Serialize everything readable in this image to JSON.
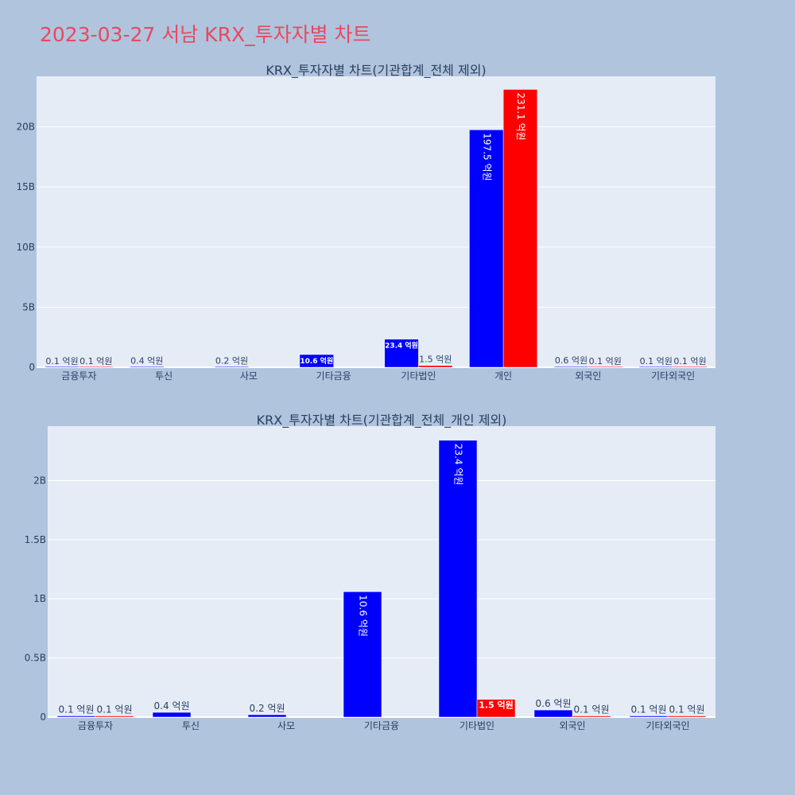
{
  "page": {
    "title": "2023-03-27 서남 KRX_투자자별 차트"
  },
  "colors": {
    "background": "#b0c4de",
    "plot_bg": "#e5ecf6",
    "grid": "#ffffff",
    "title": "#e8495d",
    "text": "#2a3f5f",
    "sell": "#0000ff",
    "buy": "#ff0000"
  },
  "chart_data": [
    {
      "type": "bar",
      "title": "KRX_투자자별 차트(기관합계_전체 제외)",
      "categories": [
        "금융투자",
        "투신",
        "사모",
        "기타금융",
        "기타법인",
        "개인",
        "외국인",
        "기타외국인"
      ],
      "series": [
        {
          "color": "#0000ff",
          "values": [
            10000000,
            40000000,
            20000000,
            1060000000,
            2340000000,
            19750000000,
            60000000,
            10000000
          ],
          "labels": [
            "0.1 억원",
            "0.4 억원",
            "0.2 억원",
            "10.6 억원",
            "23.4 억원",
            "197.5 억원",
            "0.6 억원",
            "0.1 억원"
          ]
        },
        {
          "color": "#ff0000",
          "values": [
            10000000,
            null,
            null,
            null,
            150000000,
            23110000000,
            10000000,
            10000000
          ],
          "labels": [
            "0.1 억원",
            "",
            "",
            "",
            "1.5 억원",
            "231.1 억원",
            "0.1 억원",
            "0.1 억원"
          ]
        }
      ],
      "ylim": [
        0,
        24200000000
      ],
      "yticks": [
        0,
        5000000000,
        10000000000,
        15000000000,
        20000000000
      ],
      "ytick_labels": [
        "0",
        "5B",
        "10B",
        "15B",
        "20B"
      ],
      "grid": true
    },
    {
      "type": "bar",
      "title": "KRX_투자자별 차트(기관합계_전체_개인 제외)",
      "categories": [
        "금융투자",
        "투신",
        "사모",
        "기타금융",
        "기타법인",
        "외국인",
        "기타외국인"
      ],
      "series": [
        {
          "color": "#0000ff",
          "values": [
            10000000,
            40000000,
            20000000,
            1060000000,
            2340000000,
            60000000,
            10000000
          ],
          "labels": [
            "0.1 억원",
            "0.4 억원",
            "0.2 억원",
            "10.6 억원",
            "23.4 억원",
            "0.6 억원",
            "0.1 억원"
          ]
        },
        {
          "color": "#ff0000",
          "values": [
            10000000,
            null,
            null,
            null,
            150000000,
            10000000,
            10000000
          ],
          "labels": [
            "0.1 억원",
            "",
            "",
            "",
            "1.5 억원",
            "0.1 억원",
            "0.1 억원"
          ]
        }
      ],
      "ylim": [
        0,
        2460000000
      ],
      "yticks": [
        0,
        500000000,
        1000000000,
        1500000000,
        2000000000
      ],
      "ytick_labels": [
        "0",
        "0.5B",
        "1B",
        "1.5B",
        "2B"
      ],
      "grid": true
    }
  ]
}
